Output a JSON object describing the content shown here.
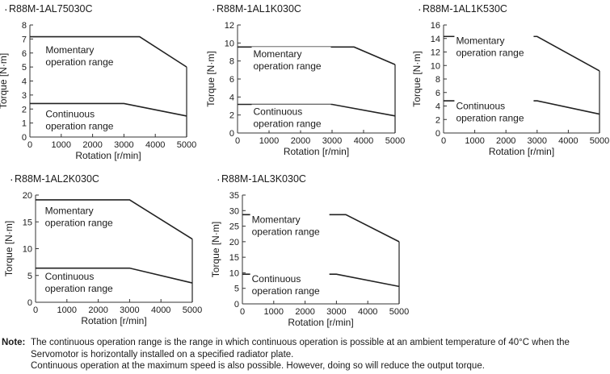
{
  "chart_data": [
    {
      "type": "line",
      "title": "R88M-1AL75030C",
      "xlabel": "Rotation [r/min]",
      "ylabel": "Torque [N·m]",
      "xlim": [
        0,
        5000
      ],
      "ylim": [
        0,
        8
      ],
      "xticks": [
        0,
        1000,
        2000,
        3000,
        4000,
        5000
      ],
      "yticks": [
        0,
        1,
        2,
        3,
        4,
        5,
        6,
        7,
        8
      ],
      "grid": false,
      "series": [
        {
          "name": "Momentary operation range",
          "x": [
            0,
            3500,
            5000
          ],
          "y": [
            7.16,
            7.16,
            5.0
          ]
        },
        {
          "name": "Continuous operation range",
          "x": [
            0,
            3000,
            5000
          ],
          "y": [
            2.39,
            2.39,
            1.5
          ]
        }
      ],
      "annotations": [
        "Momentary",
        "operation range",
        "Continuous",
        "operation range"
      ]
    },
    {
      "type": "line",
      "title": "R88M-1AL1K030C",
      "xlabel": "Rotation [r/min]",
      "ylabel": "Torque [N·m]",
      "xlim": [
        0,
        5000
      ],
      "ylim": [
        0,
        12
      ],
      "xticks": [
        0,
        1000,
        2000,
        3000,
        4000,
        5000
      ],
      "yticks": [
        0,
        2,
        4,
        6,
        8,
        10,
        12
      ],
      "grid": false,
      "series": [
        {
          "name": "Momentary operation range",
          "x": [
            0,
            3700,
            5000
          ],
          "y": [
            9.55,
            9.55,
            7.6
          ]
        },
        {
          "name": "Continuous operation range",
          "x": [
            0,
            3000,
            5000
          ],
          "y": [
            3.18,
            3.18,
            1.9
          ]
        }
      ],
      "annotations": [
        "Momentary",
        "operation range",
        "Continuous",
        "operation range"
      ]
    },
    {
      "type": "line",
      "title": "R88M-1AL1K530C",
      "xlabel": "Rotation [r/min]",
      "ylabel": "Torque [N·m]",
      "xlim": [
        0,
        5000
      ],
      "ylim": [
        0,
        16
      ],
      "xticks": [
        0,
        1000,
        2000,
        3000,
        4000,
        5000
      ],
      "yticks": [
        0,
        2,
        4,
        6,
        8,
        10,
        12,
        14,
        16
      ],
      "grid": false,
      "series": [
        {
          "name": "Momentary operation range",
          "x": [
            0,
            3000,
            5000
          ],
          "y": [
            14.3,
            14.3,
            9.2
          ]
        },
        {
          "name": "Continuous operation range",
          "x": [
            0,
            3000,
            5000
          ],
          "y": [
            4.77,
            4.77,
            2.8
          ]
        }
      ],
      "annotations": [
        "Momentary",
        "operation range",
        "Continuous",
        "operation range"
      ]
    },
    {
      "type": "line",
      "title": "R88M-1AL2K030C",
      "xlabel": "Rotation [r/min]",
      "ylabel": "Torque [N·m]",
      "xlim": [
        0,
        5000
      ],
      "ylim": [
        0,
        20
      ],
      "xticks": [
        0,
        1000,
        2000,
        3000,
        4000,
        5000
      ],
      "yticks": [
        0,
        5,
        10,
        15,
        20
      ],
      "grid": false,
      "series": [
        {
          "name": "Momentary operation range",
          "x": [
            0,
            3000,
            5000
          ],
          "y": [
            19.1,
            19.1,
            11.8
          ]
        },
        {
          "name": "Continuous operation range",
          "x": [
            0,
            3000,
            5000
          ],
          "y": [
            6.37,
            6.37,
            3.6
          ]
        }
      ],
      "annotations": [
        "Momentary",
        "operation range",
        "Continuous",
        "operation range"
      ]
    },
    {
      "type": "line",
      "title": "R88M-1AL3K030C",
      "xlabel": "Rotation [r/min]",
      "ylabel": "Torque [N·m]",
      "xlim": [
        0,
        5000
      ],
      "ylim": [
        0,
        35
      ],
      "xticks": [
        0,
        1000,
        2000,
        3000,
        4000,
        5000
      ],
      "yticks": [
        0,
        5,
        10,
        15,
        20,
        25,
        30,
        35
      ],
      "grid": false,
      "series": [
        {
          "name": "Momentary operation range",
          "x": [
            0,
            3300,
            5000
          ],
          "y": [
            28.7,
            28.7,
            20.0
          ]
        },
        {
          "name": "Continuous operation range",
          "x": [
            0,
            3000,
            5000
          ],
          "y": [
            9.55,
            9.55,
            5.6
          ]
        }
      ],
      "annotations": [
        "Momentary",
        "operation range",
        "Continuous",
        "operation range"
      ]
    }
  ],
  "note": {
    "label": "Note:",
    "lines": [
      "The continuous operation range is the range in which continuous operation is possible at an ambient temperature of 40°C when the",
      "Servomotor is horizontally installed on a specified radiator plate.",
      "Continuous operation at the maximum speed is also possible. However, doing so will reduce the output torque."
    ]
  }
}
